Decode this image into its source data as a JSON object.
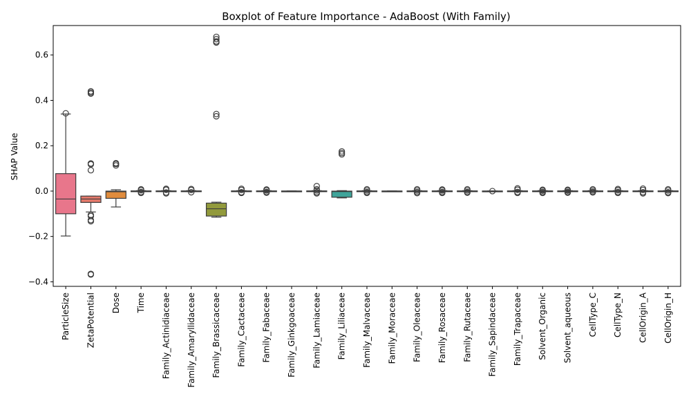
{
  "chart_data": {
    "type": "boxplot",
    "title": "Boxplot of Feature Importance - AdaBoost (With Family)",
    "xlabel": "",
    "ylabel": "SHAP Value",
    "ylim": [
      -0.42,
      0.73
    ],
    "yticks": [
      -0.4,
      -0.2,
      0.0,
      0.2,
      0.4,
      0.6
    ],
    "ytick_labels": [
      "−0.4",
      "−0.2",
      "0.0",
      "0.2",
      "0.4",
      "0.6"
    ],
    "grid": false,
    "legend": "none",
    "categories": [
      "ParticleSize",
      "ZetaPotential",
      "Dose",
      "Time",
      "Family_Actinidiaceae",
      "Family_Amaryllidaceae",
      "Family_Brassicaceae",
      "Family_Cactaceae",
      "Family_Fabaceae",
      "Family_Ginkgoaceae",
      "Family_Lamiaceae",
      "Family_Liliaceae",
      "Family_Malvaceae",
      "Family_Moraceae",
      "Family_Oleaceae",
      "Family_Rosaceae",
      "Family_Rutaceae",
      "Family_Sapindaceae",
      "Family_Trapaceae",
      "Solvent_Organic",
      "Solvent_aqueous",
      "CellType_C",
      "CellType_N",
      "CellOrigin_A",
      "CellOrigin_H"
    ],
    "boxes": [
      {
        "color": "#e8768b",
        "q1": -0.1,
        "median": -0.035,
        "q3": 0.077,
        "whisker_low": -0.198,
        "whisker_high": 0.34,
        "outliers": [
          0.343
        ]
      },
      {
        "color": "#e3796b",
        "q1": -0.05,
        "median": -0.035,
        "q3": -0.022,
        "whisker_low": -0.092,
        "whisker_high": -0.022,
        "outliers": [
          0.44,
          0.435,
          0.43,
          0.122,
          0.118,
          0.092,
          -0.105,
          -0.11,
          -0.128,
          -0.133,
          -0.365,
          -0.368
        ]
      },
      {
        "color": "#e08c3d",
        "q1": -0.032,
        "median": -0.003,
        "q3": 0.0,
        "whisker_low": -0.07,
        "whisker_high": 0.006,
        "outliers": [
          0.123,
          0.119,
          0.113
        ]
      },
      {
        "color": "#c59b3e",
        "q1": -0.001,
        "median": 0.0,
        "q3": 0.001,
        "whisker_low": -0.002,
        "whisker_high": 0.002,
        "outliers": [
          0.008,
          0.004,
          -0.004,
          -0.008
        ]
      },
      {
        "color": "#b3a23e",
        "q1": -0.001,
        "median": 0.0,
        "q3": 0.001,
        "whisker_low": -0.002,
        "whisker_high": 0.002,
        "outliers": [
          0.01,
          0.006,
          -0.006,
          -0.01
        ]
      },
      {
        "color": "#a1a63e",
        "q1": -0.001,
        "median": 0.0,
        "q3": 0.001,
        "whisker_low": -0.002,
        "whisker_high": 0.002,
        "outliers": [
          0.009,
          0.005,
          -0.005
        ]
      },
      {
        "color": "#929a3c",
        "q1": -0.11,
        "median": -0.078,
        "q3": -0.053,
        "whisker_low": -0.115,
        "whisker_high": -0.049,
        "outliers": [
          0.68,
          0.67,
          0.66,
          0.655,
          0.34,
          0.33
        ]
      },
      {
        "color": "#6aa83f",
        "q1": -0.001,
        "median": 0.0,
        "q3": 0.001,
        "whisker_low": -0.002,
        "whisker_high": 0.002,
        "outliers": [
          0.01,
          0.005,
          -0.005,
          -0.008
        ]
      },
      {
        "color": "#3daa4f",
        "q1": -0.001,
        "median": 0.0,
        "q3": 0.001,
        "whisker_low": -0.002,
        "whisker_high": 0.002,
        "outliers": [
          0.007,
          0.003,
          -0.004,
          -0.007
        ]
      },
      {
        "color": "#3da873",
        "q1": -0.0005,
        "median": 0.0,
        "q3": 0.0005,
        "whisker_low": -0.001,
        "whisker_high": 0.001,
        "outliers": []
      },
      {
        "color": "#3ea58b",
        "q1": -0.001,
        "median": 0.0,
        "q3": 0.001,
        "whisker_low": -0.002,
        "whisker_high": 0.002,
        "outliers": [
          0.022,
          0.008,
          0.003,
          -0.005,
          -0.01
        ]
      },
      {
        "color": "#3fa49a",
        "q1": -0.027,
        "median": -0.002,
        "q3": 0.0,
        "whisker_low": -0.03,
        "whisker_high": 0.002,
        "outliers": [
          0.175,
          0.168,
          0.162
        ]
      },
      {
        "color": "#40a3a8",
        "q1": -0.001,
        "median": 0.0,
        "q3": 0.001,
        "whisker_low": -0.002,
        "whisker_high": 0.002,
        "outliers": [
          0.008,
          0.003,
          -0.004,
          -0.008
        ]
      },
      {
        "color": "#42a2b8",
        "q1": -0.0005,
        "median": 0.0,
        "q3": 0.0005,
        "whisker_low": -0.001,
        "whisker_high": 0.001,
        "outliers": []
      },
      {
        "color": "#45a0cc",
        "q1": -0.001,
        "median": 0.0,
        "q3": 0.001,
        "whisker_low": -0.002,
        "whisker_high": 0.002,
        "outliers": [
          0.008,
          0.003,
          -0.004,
          -0.009
        ]
      },
      {
        "color": "#5b9ce0",
        "q1": -0.001,
        "median": 0.0,
        "q3": 0.001,
        "whisker_low": -0.002,
        "whisker_high": 0.002,
        "outliers": [
          0.007,
          0.003,
          -0.004,
          -0.008
        ]
      },
      {
        "color": "#8a94e6",
        "q1": -0.001,
        "median": 0.0,
        "q3": 0.001,
        "whisker_low": -0.002,
        "whisker_high": 0.002,
        "outliers": [
          0.008,
          0.003,
          -0.004,
          -0.007
        ]
      },
      {
        "color": "#aa8ae6",
        "q1": -0.0005,
        "median": 0.0,
        "q3": 0.0005,
        "whisker_low": -0.001,
        "whisker_high": 0.001,
        "outliers": [
          0.0
        ]
      },
      {
        "color": "#c27de6",
        "q1": -0.001,
        "median": 0.0,
        "q3": 0.001,
        "whisker_low": -0.002,
        "whisker_high": 0.002,
        "outliers": [
          0.012,
          0.006,
          -0.004,
          -0.008
        ]
      },
      {
        "color": "#d36fe0",
        "q1": -0.001,
        "median": 0.0,
        "q3": 0.001,
        "whisker_low": -0.002,
        "whisker_high": 0.002,
        "outliers": [
          0.006,
          0.002,
          -0.004,
          -0.008
        ]
      },
      {
        "color": "#df6ad3",
        "q1": -0.001,
        "median": 0.0,
        "q3": 0.001,
        "whisker_low": -0.002,
        "whisker_high": 0.002,
        "outliers": [
          0.006,
          0.002,
          -0.004,
          -0.007
        ]
      },
      {
        "color": "#e56bc0",
        "q1": -0.001,
        "median": 0.0,
        "q3": 0.001,
        "whisker_low": -0.002,
        "whisker_high": 0.002,
        "outliers": [
          0.008,
          0.003,
          -0.003,
          -0.006
        ]
      },
      {
        "color": "#e86dab",
        "q1": -0.001,
        "median": 0.0,
        "q3": 0.001,
        "whisker_low": -0.002,
        "whisker_high": 0.002,
        "outliers": [
          0.009,
          0.004,
          -0.004,
          -0.008
        ]
      },
      {
        "color": "#e8709c",
        "q1": -0.001,
        "median": 0.0,
        "q3": 0.001,
        "whisker_low": -0.002,
        "whisker_high": 0.002,
        "outliers": [
          0.011,
          0.005,
          -0.005,
          -0.01
        ]
      },
      {
        "color": "#e8748f",
        "q1": -0.001,
        "median": 0.0,
        "q3": 0.001,
        "whisker_low": -0.002,
        "whisker_high": 0.002,
        "outliers": [
          0.008,
          0.003,
          -0.005,
          -0.009
        ]
      }
    ]
  }
}
